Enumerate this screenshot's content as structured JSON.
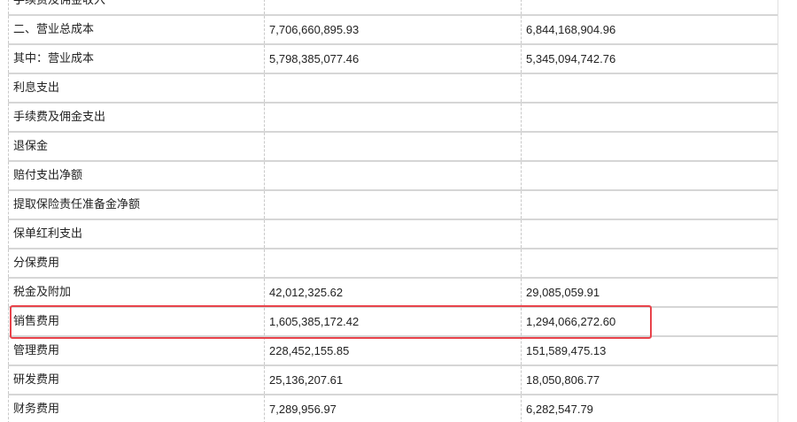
{
  "table": {
    "rows": [
      {
        "label": "手续费及佣金收入",
        "current": "",
        "previous": ""
      },
      {
        "label": "二、营业总成本",
        "current": "7,706,660,895.93",
        "previous": "6,844,168,904.96"
      },
      {
        "label": "其中：营业成本",
        "current": "5,798,385,077.46",
        "previous": "5,345,094,742.76"
      },
      {
        "label": "利息支出",
        "current": "",
        "previous": ""
      },
      {
        "label": "手续费及佣金支出",
        "current": "",
        "previous": ""
      },
      {
        "label": "退保金",
        "current": "",
        "previous": ""
      },
      {
        "label": "赔付支出净额",
        "current": "",
        "previous": ""
      },
      {
        "label": "提取保险责任准备金净额",
        "current": "",
        "previous": ""
      },
      {
        "label": "保单红利支出",
        "current": "",
        "previous": ""
      },
      {
        "label": "分保费用",
        "current": "",
        "previous": ""
      },
      {
        "label": "税金及附加",
        "current": "42,012,325.62",
        "previous": "29,085,059.91"
      },
      {
        "label": "销售费用",
        "current": "1,605,385,172.42",
        "previous": "1,294,066,272.60"
      },
      {
        "label": "管理费用",
        "current": "228,452,155.85",
        "previous": "151,589,475.13"
      },
      {
        "label": "研发费用",
        "current": "25,136,207.61",
        "previous": "18,050,806.77"
      },
      {
        "label": "财务费用",
        "current": "7,289,956.97",
        "previous": "6,282,547.79"
      }
    ],
    "highlighted_row": 11,
    "highlight_color": "#e8434b"
  }
}
